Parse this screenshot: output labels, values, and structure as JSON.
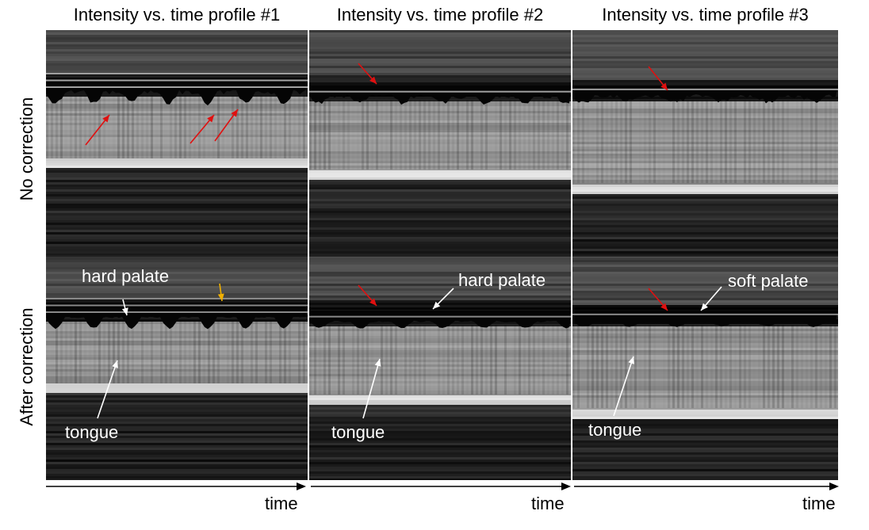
{
  "column_titles": [
    "Intensity vs. time profile #1",
    "Intensity vs. time profile #2",
    "Intensity vs. time profile #3"
  ],
  "row_labels": [
    "No correction",
    "After correction"
  ],
  "axis_label": "time",
  "annotations": {
    "p1_hard_palate": "hard palate",
    "p1_tongue": "tongue",
    "p2_hard_palate": "hard palate",
    "p2_tongue": "tongue",
    "p3_soft_palate": "soft palate",
    "p3_tongue": "tongue"
  },
  "colors": {
    "problem_arrow": "#e01010",
    "residual_arrow": "#f0b000",
    "label_arrow": "#ffffff",
    "background": "#0b0b0b"
  }
}
